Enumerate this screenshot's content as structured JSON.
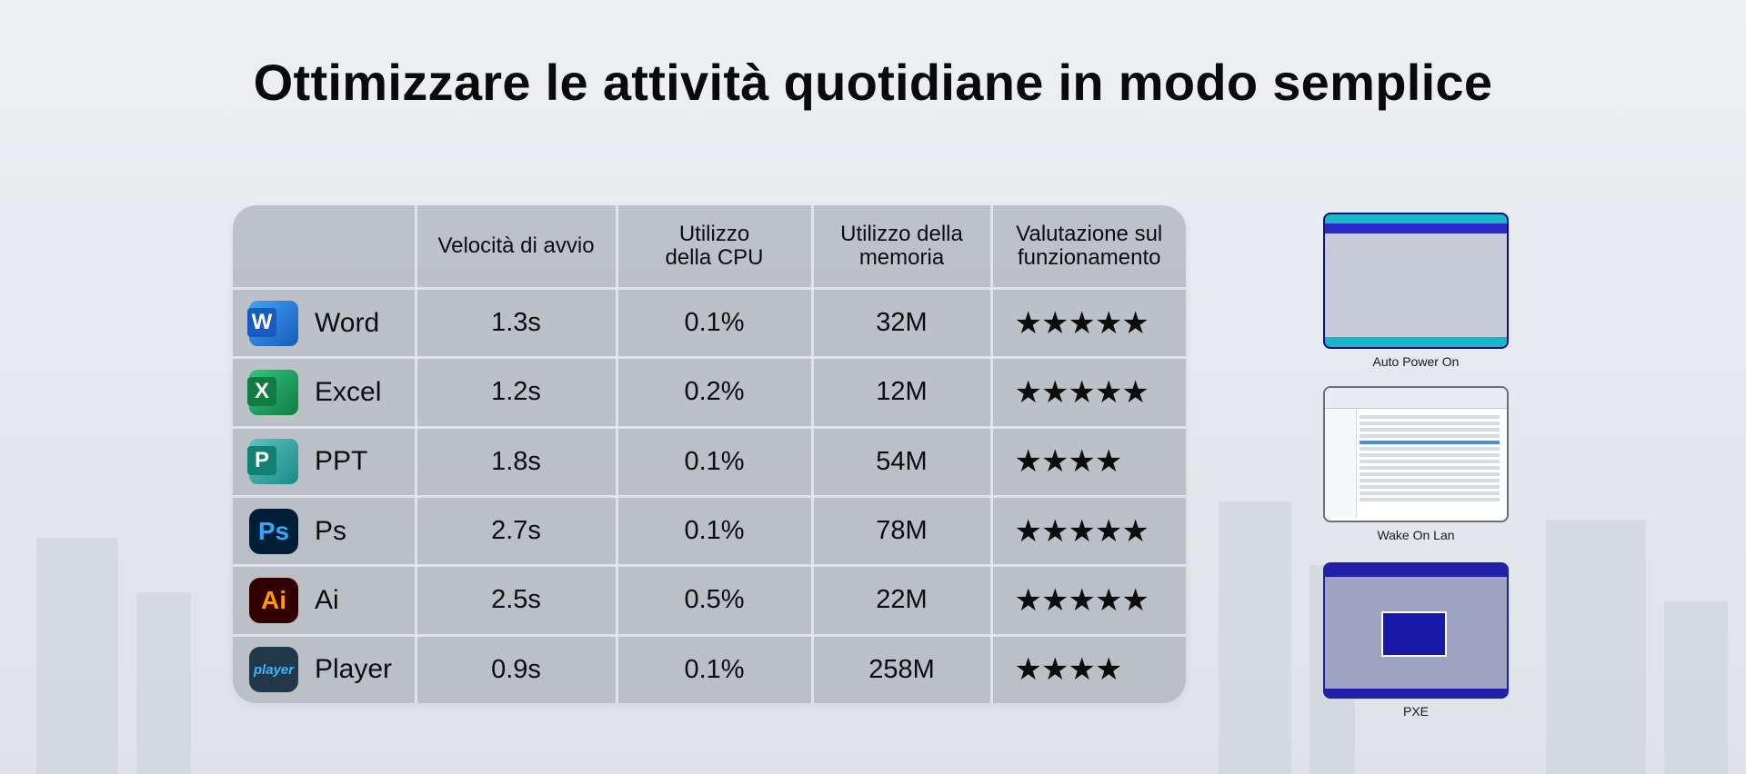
{
  "title": "Ottimizzare le attività quotidiane in modo semplice",
  "table": {
    "headers": [
      "",
      "Velocità di avvio",
      "Utilizzo della CPU",
      "Utilizzo della memoria",
      "Valutazione sul funzionamento"
    ],
    "rows": [
      {
        "app": "Word",
        "icon": "word-icon",
        "speed": "1.3s",
        "cpu": "0.1%",
        "memory": "32M",
        "stars": "★★★★★",
        "rating": 5
      },
      {
        "app": "Excel",
        "icon": "excel-icon",
        "speed": "1.2s",
        "cpu": "0.2%",
        "memory": "12M",
        "stars": "★★★★★",
        "rating": 5
      },
      {
        "app": "PPT",
        "icon": "powerpoint-icon",
        "speed": "1.8s",
        "cpu": "0.1%",
        "memory": "54M",
        "stars": "★★★★",
        "rating": 4
      },
      {
        "app": "Ps",
        "icon": "photoshop-icon",
        "speed": "2.7s",
        "cpu": "0.1%",
        "memory": "78M",
        "stars": "★★★★★",
        "rating": 5
      },
      {
        "app": "Ai",
        "icon": "illustrator-icon",
        "speed": "2.5s",
        "cpu": "0.5%",
        "memory": "22M",
        "stars": "★★★★★",
        "rating": 5
      },
      {
        "app": "Player",
        "icon": "player-icon",
        "speed": "0.9s",
        "cpu": "0.1%",
        "memory": "258M",
        "stars": "★★★★",
        "rating": 4
      }
    ]
  },
  "icon_text": {
    "word": "W",
    "excel": "X",
    "ppt": "P",
    "ps": "Ps",
    "ai": "Ai",
    "player": "player"
  },
  "screenshots": [
    {
      "caption": "Auto Power On"
    },
    {
      "caption": "Wake On Lan"
    },
    {
      "caption": "PXE"
    }
  ],
  "colors": {
    "word": "#185abd",
    "excel": "#107c41",
    "ppt": "#138075",
    "ps": "#31a8ff",
    "ai": "#ff9a00",
    "player": "#37b7ff"
  }
}
